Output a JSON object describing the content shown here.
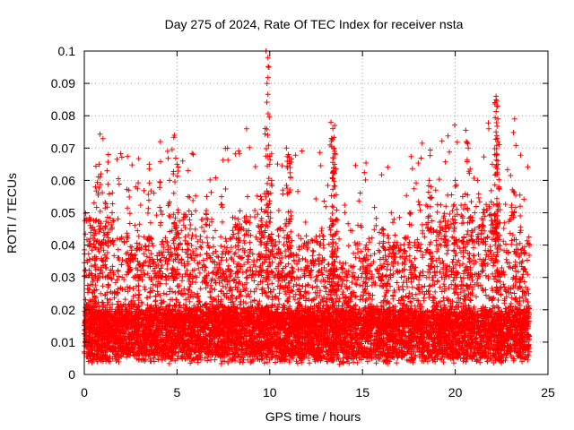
{
  "chart_data": {
    "type": "scatter",
    "title": "Day 275 of 2024, Rate Of TEC Index for receiver nsta",
    "xlabel": "GPS time / hours",
    "ylabel": "ROTI / TECUs",
    "xlim": [
      0,
      25
    ],
    "ylim": [
      0,
      0.1
    ],
    "xticks": [
      0,
      5,
      10,
      15,
      20,
      25
    ],
    "yticks": [
      0,
      0.01,
      0.02,
      0.03,
      0.04,
      0.05,
      0.06,
      0.07,
      0.08,
      0.09,
      0.1
    ],
    "grid": true,
    "marker": "+",
    "series_color": "#ff0000",
    "series": [
      {
        "name": "ROTI",
        "x_range": [
          0,
          24
        ],
        "baseline_range": [
          0.005,
          0.02
        ],
        "points": [
          [
            0.3,
            0.048
          ],
          [
            0.6,
            0.058
          ],
          [
            0.8,
            0.065
          ],
          [
            0.9,
            0.062
          ],
          [
            1.3,
            0.068
          ],
          [
            1.5,
            0.05
          ],
          [
            2.4,
            0.057
          ],
          [
            3.5,
            0.065
          ],
          [
            4.1,
            0.072
          ],
          [
            4.6,
            0.06
          ],
          [
            4.8,
            0.062
          ],
          [
            5.0,
            0.065
          ],
          [
            5.6,
            0.055
          ],
          [
            6.6,
            0.055
          ],
          [
            7.4,
            0.055
          ],
          [
            8.3,
            0.048
          ],
          [
            8.8,
            0.055
          ],
          [
            9.5,
            0.055
          ],
          [
            9.8,
            0.1
          ],
          [
            9.9,
            0.098
          ],
          [
            9.95,
            0.095
          ],
          [
            9.85,
            0.09
          ],
          [
            10.0,
            0.065
          ],
          [
            10.1,
            0.06
          ],
          [
            10.5,
            0.045
          ],
          [
            10.9,
            0.07
          ],
          [
            11.0,
            0.068
          ],
          [
            11.05,
            0.066
          ],
          [
            11.1,
            0.064
          ],
          [
            13.3,
            0.078
          ],
          [
            13.4,
            0.076
          ],
          [
            13.5,
            0.077
          ],
          [
            13.35,
            0.073
          ],
          [
            13.45,
            0.07
          ],
          [
            13.4,
            0.067
          ],
          [
            13.5,
            0.065
          ],
          [
            13.45,
            0.063
          ],
          [
            13.6,
            0.048
          ],
          [
            15.2,
            0.04
          ],
          [
            16.1,
            0.045
          ],
          [
            16.7,
            0.048
          ],
          [
            17.6,
            0.05
          ],
          [
            18.6,
            0.06
          ],
          [
            18.7,
            0.058
          ],
          [
            19.5,
            0.052
          ],
          [
            20.0,
            0.06
          ],
          [
            20.4,
            0.055
          ],
          [
            20.6,
            0.072
          ],
          [
            20.7,
            0.07
          ],
          [
            21.2,
            0.06
          ],
          [
            21.5,
            0.05
          ],
          [
            22.0,
            0.065
          ],
          [
            22.2,
            0.086
          ],
          [
            22.25,
            0.083
          ],
          [
            22.3,
            0.079
          ],
          [
            22.2,
            0.075
          ],
          [
            22.3,
            0.072
          ],
          [
            22.25,
            0.068
          ],
          [
            22.3,
            0.065
          ],
          [
            22.2,
            0.062
          ],
          [
            22.35,
            0.058
          ],
          [
            23.2,
            0.079
          ],
          [
            23.5,
            0.052
          ]
        ]
      }
    ]
  }
}
